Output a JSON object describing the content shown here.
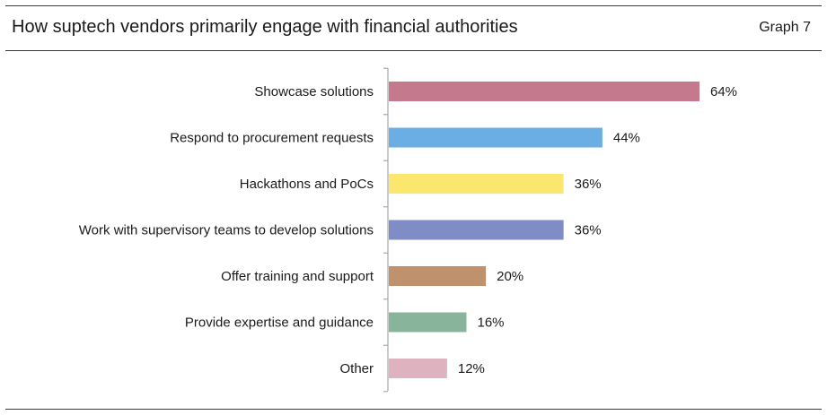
{
  "header": {
    "title": "How suptech vendors primarily engage with financial authorities",
    "graph_label": "Graph 7"
  },
  "chart_data": {
    "type": "bar",
    "orientation": "horizontal",
    "title": "How suptech vendors primarily engage with financial authorities",
    "categories": [
      "Showcase solutions",
      "Respond to procurement requests",
      "Hackathons and PoCs",
      "Work with supervisory teams to develop solutions",
      "Offer training and support",
      "Provide expertise and guidance",
      "Other"
    ],
    "values": [
      64,
      44,
      36,
      36,
      20,
      16,
      12
    ],
    "value_labels": [
      "64%",
      "44%",
      "36%",
      "36%",
      "20%",
      "16%",
      "12%"
    ],
    "colors": [
      "#c47a8c",
      "#6aaee3",
      "#fbe66e",
      "#7f8cc6",
      "#c0916d",
      "#88b49c",
      "#dfb2bf"
    ],
    "xlim": [
      0,
      100
    ],
    "unit": "%",
    "grid": false,
    "legend": "none"
  }
}
